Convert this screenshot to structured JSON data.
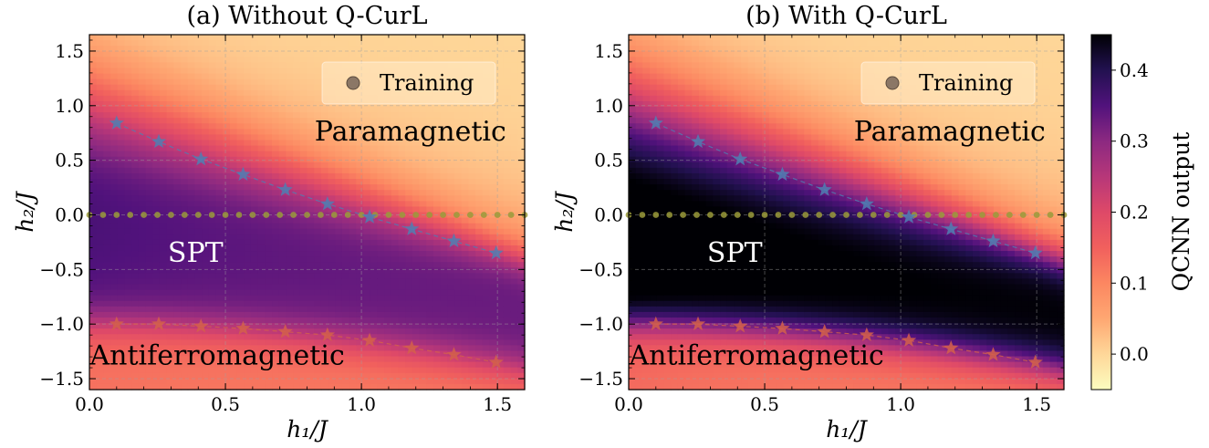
{
  "chart_data": {
    "type": "heatmap",
    "panels": [
      {
        "title": "(a) Without Q-CurL",
        "variant": "without",
        "xlabel": "h₁/J",
        "ylabel": "h₂/J",
        "xlim": [
          0.0,
          1.6
        ],
        "ylim": [
          -1.6,
          1.65
        ],
        "xticks": [
          0.0,
          0.5,
          1.0,
          1.5
        ],
        "xtick_labels": [
          "0.0",
          "0.5",
          "1.0",
          "1.5"
        ],
        "yticks": [
          1.5,
          1.0,
          0.5,
          0.0,
          -0.5,
          -1.0,
          -1.5
        ],
        "ytick_labels": [
          "1.5",
          "1.0",
          "0.5",
          "0.0",
          "−0.5",
          "−1.0",
          "−1.5"
        ],
        "grid": true,
        "legend": {
          "label": "Training",
          "placement": "top-right"
        },
        "regions": [
          {
            "label": "Paramagnetic",
            "x": 1.18,
            "y": 0.68,
            "tone": "dark"
          },
          {
            "label": "SPT",
            "x": 0.39,
            "y": -0.43,
            "tone": "light"
          },
          {
            "label": "Antiferromagnetic",
            "x": 0.47,
            "y": -1.37,
            "tone": "dark"
          }
        ],
        "series": [
          {
            "name": "Training",
            "kind": "dots",
            "color": "#9a9a3a",
            "x": [
              0.0,
              0.05,
              0.1,
              0.15,
              0.2,
              0.25,
              0.3,
              0.35,
              0.4,
              0.45,
              0.5,
              0.55,
              0.6,
              0.65,
              0.7,
              0.75,
              0.8,
              0.85,
              0.9,
              0.95,
              1.0,
              1.05,
              1.1,
              1.15,
              1.2,
              1.25,
              1.3,
              1.35,
              1.4,
              1.45,
              1.5,
              1.55,
              1.6
            ],
            "y": [
              0,
              0,
              0,
              0,
              0,
              0,
              0,
              0,
              0,
              0,
              0,
              0,
              0,
              0,
              0,
              0,
              0,
              0,
              0,
              0,
              0,
              0,
              0,
              0,
              0,
              0,
              0,
              0,
              0,
              0,
              0,
              0,
              0
            ]
          },
          {
            "kind": "stars",
            "color": "#4f7fb3",
            "x": [
              0.1,
              0.255,
              0.41,
              0.565,
              0.72,
              0.875,
              1.03,
              1.185,
              1.34,
              1.495
            ],
            "y": [
              0.84,
              0.67,
              0.51,
              0.37,
              0.23,
              0.1,
              -0.02,
              -0.13,
              -0.24,
              -0.35
            ]
          },
          {
            "kind": "stars",
            "color": "#d4604a",
            "x": [
              0.1,
              0.255,
              0.41,
              0.565,
              0.72,
              0.875,
              1.03,
              1.185,
              1.34,
              1.495
            ],
            "y": [
              -1.0,
              -1.0,
              -1.02,
              -1.04,
              -1.07,
              -1.1,
              -1.15,
              -1.22,
              -1.28,
              -1.35
            ]
          }
        ]
      },
      {
        "title": "(b) With Q-CurL",
        "variant": "with",
        "xlabel": "h₁/J",
        "ylabel": "h₂/J",
        "xlim": [
          0.0,
          1.6
        ],
        "ylim": [
          -1.6,
          1.65
        ],
        "xticks": [
          0.0,
          0.5,
          1.0,
          1.5
        ],
        "xtick_labels": [
          "0.0",
          "0.5",
          "1.0",
          "1.5"
        ],
        "yticks": [
          1.5,
          1.0,
          0.5,
          0.0,
          -0.5,
          -1.0,
          -1.5
        ],
        "ytick_labels": [
          "1.5",
          "1.0",
          "0.5",
          "0.0",
          "−0.5",
          "−1.0",
          "−1.5"
        ],
        "grid": true,
        "legend": {
          "label": "Training",
          "placement": "top-right"
        },
        "regions": [
          {
            "label": "Paramagnetic",
            "x": 1.18,
            "y": 0.68,
            "tone": "dark"
          },
          {
            "label": "SPT",
            "x": 0.39,
            "y": -0.43,
            "tone": "light"
          },
          {
            "label": "Antiferromagnetic",
            "x": 0.47,
            "y": -1.37,
            "tone": "dark"
          }
        ],
        "series": [
          {
            "name": "Training",
            "kind": "dots",
            "color": "#9a9a3a",
            "x": [
              0.0,
              0.05,
              0.1,
              0.15,
              0.2,
              0.25,
              0.3,
              0.35,
              0.4,
              0.45,
              0.5,
              0.55,
              0.6,
              0.65,
              0.7,
              0.75,
              0.8,
              0.85,
              0.9,
              0.95,
              1.0,
              1.05,
              1.1,
              1.15,
              1.2,
              1.25,
              1.3,
              1.35,
              1.4,
              1.45,
              1.5,
              1.55,
              1.6
            ],
            "y": [
              0,
              0,
              0,
              0,
              0,
              0,
              0,
              0,
              0,
              0,
              0,
              0,
              0,
              0,
              0,
              0,
              0,
              0,
              0,
              0,
              0,
              0,
              0,
              0,
              0,
              0,
              0,
              0,
              0,
              0,
              0,
              0,
              0
            ]
          },
          {
            "kind": "stars",
            "color": "#4f7fb3",
            "x": [
              0.1,
              0.255,
              0.41,
              0.565,
              0.72,
              0.875,
              1.03,
              1.185,
              1.34,
              1.495
            ],
            "y": [
              0.84,
              0.67,
              0.51,
              0.37,
              0.23,
              0.1,
              -0.02,
              -0.13,
              -0.24,
              -0.35
            ]
          },
          {
            "kind": "stars",
            "color": "#d4604a",
            "x": [
              0.1,
              0.255,
              0.41,
              0.565,
              0.72,
              0.875,
              1.03,
              1.185,
              1.34,
              1.495
            ],
            "y": [
              -1.0,
              -1.0,
              -1.02,
              -1.04,
              -1.07,
              -1.1,
              -1.15,
              -1.22,
              -1.28,
              -1.35
            ]
          }
        ]
      }
    ],
    "colorbar": {
      "label": "QCNN output",
      "colormap": "magma_r",
      "vmin": -0.05,
      "vmax": 0.45,
      "ticks": [
        0.0,
        0.1,
        0.2,
        0.3,
        0.4
      ],
      "tick_labels": [
        "0.0",
        "0.1",
        "0.2",
        "0.3",
        "0.4"
      ]
    }
  }
}
